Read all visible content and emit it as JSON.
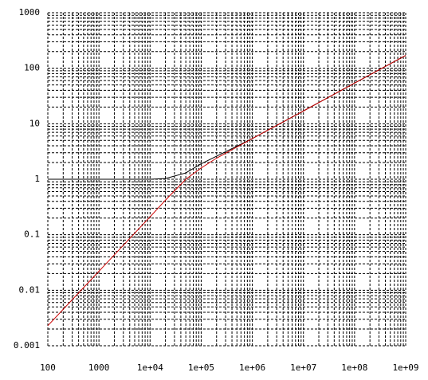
{
  "chart_data": {
    "type": "line",
    "log_x": true,
    "log_y": true,
    "grid": true,
    "minor_grid": true,
    "x": [
      100,
      1000,
      10000,
      20000,
      50000,
      100000,
      200000,
      1000000,
      10000000,
      100000000,
      1000000000
    ],
    "series": [
      {
        "color": "#000000",
        "values": [
          1,
          1,
          1,
          1.03,
          1.3,
          1.9,
          2.6,
          5.4,
          17,
          54,
          170
        ]
      },
      {
        "color": "#cc0000",
        "values": [
          0.0023,
          0.022,
          0.21,
          0.42,
          1.0,
          1.6,
          2.4,
          5.4,
          17,
          54,
          170
        ]
      }
    ],
    "xlim": [
      100,
      1000000000
    ],
    "xticks": [
      100,
      1000,
      {
        "value": 10000,
        "label": "1e+04"
      },
      {
        "value": 100000,
        "label": "1e+05"
      },
      {
        "value": 1000000,
        "label": "1e+06"
      },
      {
        "value": 10000000,
        "label": "1e+07"
      },
      {
        "value": 100000000,
        "label": "1e+08"
      },
      {
        "value": 1000000000,
        "label": "1e+09"
      }
    ],
    "ylim": [
      0.001,
      1000
    ],
    "yticks": [
      0.001,
      0.01,
      0.1,
      1,
      10,
      100,
      1000
    ]
  }
}
